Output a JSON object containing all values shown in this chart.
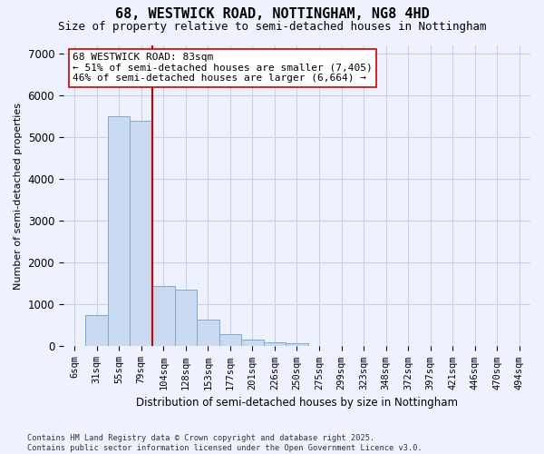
{
  "title": "68, WESTWICK ROAD, NOTTINGHAM, NG8 4HD",
  "subtitle": "Size of property relative to semi-detached houses in Nottingham",
  "xlabel": "Distribution of semi-detached houses by size in Nottingham",
  "ylabel": "Number of semi-detached properties",
  "categories": [
    "6sqm",
    "31sqm",
    "55sqm",
    "79sqm",
    "104sqm",
    "128sqm",
    "153sqm",
    "177sqm",
    "201sqm",
    "226sqm",
    "250sqm",
    "275sqm",
    "299sqm",
    "323sqm",
    "348sqm",
    "372sqm",
    "397sqm",
    "421sqm",
    "446sqm",
    "470sqm",
    "494sqm"
  ],
  "values": [
    10,
    750,
    5500,
    5400,
    1450,
    1350,
    640,
    290,
    170,
    90,
    80,
    5,
    5,
    2,
    2,
    1,
    1,
    0,
    0,
    0,
    0
  ],
  "bar_color": "#c9d9f0",
  "bar_edge_color": "#7fa8d0",
  "property_line_index": 3,
  "property_size": "83sqm",
  "pct_smaller": 51,
  "count_smaller": 7405,
  "pct_larger": 46,
  "count_larger": 6664,
  "ylim": [
    0,
    7200
  ],
  "yticks": [
    0,
    1000,
    2000,
    3000,
    4000,
    5000,
    6000,
    7000
  ],
  "footer_text": "Contains HM Land Registry data © Crown copyright and database right 2025.\nContains public sector information licensed under the Open Government Licence v3.0.",
  "bg_color": "#eef2ff",
  "grid_color": "#c8d0e8",
  "annotation_line_color": "#cc0000",
  "title_fontsize": 11,
  "subtitle_fontsize": 9,
  "annotation_fontsize": 8
}
